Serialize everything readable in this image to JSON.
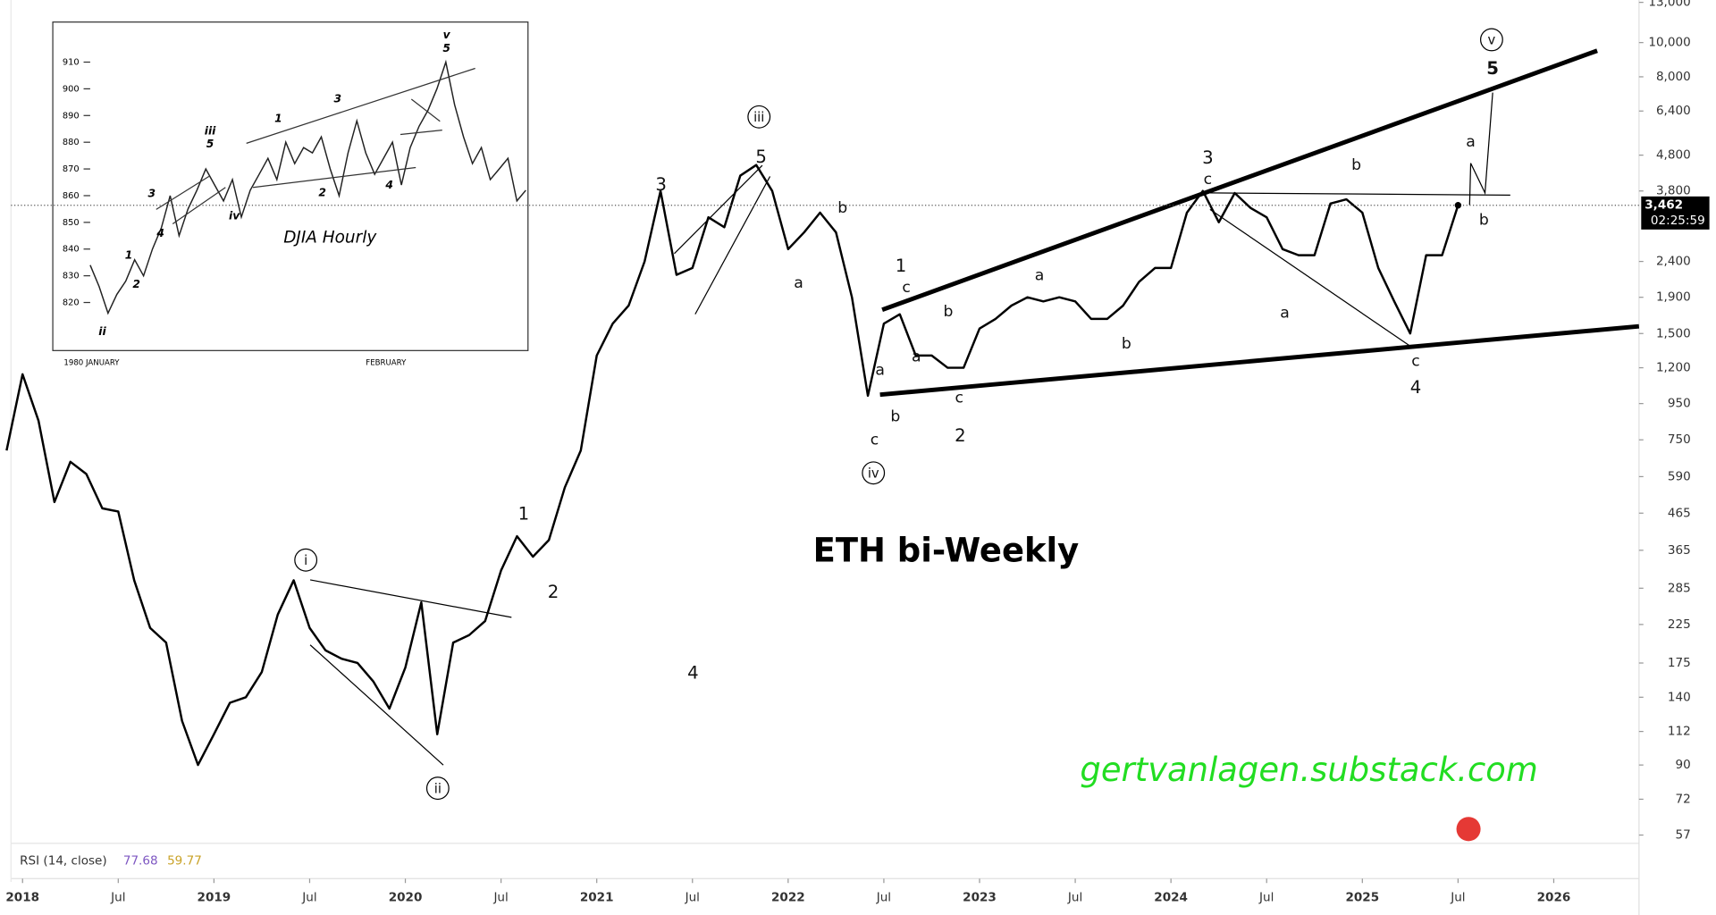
{
  "chart_data": [
    {
      "type": "line",
      "title": "ETH bi-Weekly",
      "watermark": "gertvanlagen.substack.com",
      "log_scale": true,
      "color": "#000000",
      "x": [
        "2017-12",
        "2018-01",
        "2018-02",
        "2018-03",
        "2018-04",
        "2018-05",
        "2018-06",
        "2018-07",
        "2018-08",
        "2018-09",
        "2018-10",
        "2018-11",
        "2018-12",
        "2019-01",
        "2019-02",
        "2019-03",
        "2019-04",
        "2019-05",
        "2019-06",
        "2019-07",
        "2019-08",
        "2019-09",
        "2019-10",
        "2019-11",
        "2019-12",
        "2020-01",
        "2020-02",
        "2020-03",
        "2020-04",
        "2020-05",
        "2020-06",
        "2020-07",
        "2020-08",
        "2020-09",
        "2020-10",
        "2020-11",
        "2020-12",
        "2021-01",
        "2021-02",
        "2021-03",
        "2021-04",
        "2021-05",
        "2021-06",
        "2021-07",
        "2021-08",
        "2021-09",
        "2021-10",
        "2021-11",
        "2021-12",
        "2022-01",
        "2022-02",
        "2022-03",
        "2022-04",
        "2022-05",
        "2022-06",
        "2022-07",
        "2022-08",
        "2022-09",
        "2022-10",
        "2022-11",
        "2022-12",
        "2023-01",
        "2023-02",
        "2023-03",
        "2023-04",
        "2023-05",
        "2023-06",
        "2023-07",
        "2023-08",
        "2023-09",
        "2023-10",
        "2023-11",
        "2023-12",
        "2024-01",
        "2024-02",
        "2024-03",
        "2024-04",
        "2024-05",
        "2024-06",
        "2024-07",
        "2024-08",
        "2024-09",
        "2024-10",
        "2024-11",
        "2024-12",
        "2025-01",
        "2025-02",
        "2025-03",
        "2025-04",
        "2025-05",
        "2025-06",
        "2025-07"
      ],
      "values": [
        700,
        1150,
        850,
        500,
        650,
        600,
        480,
        470,
        300,
        220,
        200,
        120,
        90,
        110,
        135,
        140,
        165,
        240,
        300,
        220,
        190,
        180,
        175,
        155,
        130,
        170,
        260,
        110,
        200,
        210,
        230,
        320,
        400,
        350,
        390,
        550,
        700,
        1300,
        1600,
        1800,
        2400,
        3800,
        2200,
        2300,
        3200,
        3000,
        4200,
        4500,
        3800,
        2600,
        2900,
        3300,
        2900,
        1900,
        1000,
        1600,
        1700,
        1300,
        1300,
        1200,
        1200,
        1550,
        1650,
        1800,
        1900,
        1850,
        1900,
        1850,
        1650,
        1650,
        1800,
        2100,
        2300,
        2300,
        3300,
        3800,
        3100,
        3750,
        3400,
        3200,
        2600,
        2500,
        2500,
        3500,
        3600,
        3300,
        2300,
        1850,
        1500,
        2500,
        2500,
        3462
      ],
      "xlim": [
        "2017-12",
        "2026-06"
      ],
      "xticks": [
        {
          "value": "2018-01",
          "label": "2018"
        },
        {
          "value": "2018-07",
          "label": "Jul"
        },
        {
          "value": "2019-01",
          "label": "2019"
        },
        {
          "value": "2019-07",
          "label": "Jul"
        },
        {
          "value": "2020-01",
          "label": "2020"
        },
        {
          "value": "2020-07",
          "label": "Jul"
        },
        {
          "value": "2021-01",
          "label": "2021"
        },
        {
          "value": "2021-07",
          "label": "Jul"
        },
        {
          "value": "2022-01",
          "label": "2022"
        },
        {
          "value": "2022-07",
          "label": "Jul"
        },
        {
          "value": "2023-01",
          "label": "2023"
        },
        {
          "value": "2023-07",
          "label": "Jul"
        },
        {
          "value": "2024-01",
          "label": "2024"
        },
        {
          "value": "2024-07",
          "label": "Jul"
        },
        {
          "value": "2025-01",
          "label": "2025"
        },
        {
          "value": "2025-07",
          "label": "Jul"
        },
        {
          "value": "2026-01",
          "label": "2026"
        }
      ],
      "ylim": [
        54,
        13200
      ],
      "yticks": [
        57,
        72,
        90,
        112,
        140,
        175,
        225,
        285,
        365,
        465,
        590,
        750,
        950,
        {
          "value": 1200,
          "label": "1,200"
        },
        {
          "value": 1500,
          "label": "1,500"
        },
        {
          "value": 1900,
          "label": "1,900"
        },
        {
          "value": 2400,
          "label": "2,400"
        },
        {
          "value": 3800,
          "label": "3,800"
        },
        {
          "value": 4800,
          "label": "4,800"
        },
        {
          "value": 6400,
          "label": "6,400"
        },
        {
          "value": 8000,
          "label": "8,000"
        },
        {
          "value": 10000,
          "label": "10,000"
        },
        {
          "value": 13000,
          "label": "13,000"
        }
      ],
      "last_price": {
        "value": 3462,
        "label": "3,462",
        "time": "02:25:59"
      },
      "rsi": {
        "label": "RSI (14, close)",
        "values": [
          77.68,
          59.77
        ]
      },
      "annotations": [
        {
          "text": "i",
          "circled": true
        },
        {
          "text": "ii",
          "circled": true
        },
        {
          "text": "iii",
          "circled": true
        },
        {
          "text": "iv",
          "circled": true
        },
        {
          "text": "v",
          "circled": true
        },
        "1",
        "2",
        "3",
        "4",
        "5",
        "a",
        "b",
        "a",
        "b",
        "c",
        "1",
        "c",
        "a",
        "b",
        "c",
        "2",
        "a",
        "b",
        "3",
        "c",
        "a",
        "b",
        "c",
        "4",
        "b",
        "a",
        "5"
      ]
    },
    {
      "type": "line",
      "title": "DJIA Hourly",
      "color": "#222222",
      "categories": [
        "1980 JANUARY",
        null,
        null,
        null,
        null,
        null,
        null,
        null,
        null,
        null,
        null,
        null,
        null,
        null,
        null,
        null,
        null,
        null,
        null,
        null,
        null,
        null,
        null,
        null,
        null,
        null,
        null,
        null,
        null,
        null,
        null,
        "FEBRUARY",
        null,
        null,
        null,
        null,
        null,
        null,
        null,
        null,
        null,
        null,
        null,
        null,
        null,
        null,
        null,
        null,
        null,
        null
      ],
      "values": [
        834,
        826,
        816,
        823,
        828,
        836,
        830,
        840,
        848,
        860,
        845,
        855,
        862,
        870,
        864,
        858,
        866,
        852,
        862,
        868,
        874,
        866,
        880,
        872,
        878,
        876,
        882,
        870,
        860,
        876,
        888,
        876,
        868,
        874,
        880,
        864,
        878,
        886,
        892,
        900,
        910,
        894,
        882,
        872,
        878,
        866,
        870,
        874,
        858,
        862
      ],
      "ylim": [
        802,
        925
      ],
      "yticks": [
        820,
        830,
        840,
        850,
        860,
        870,
        880,
        890,
        900,
        910
      ],
      "annotations": [
        "ii",
        "1",
        "2",
        "3",
        "4",
        "iii",
        "5",
        "iv",
        "1",
        "2",
        "3",
        "4",
        "v",
        "5"
      ]
    }
  ]
}
